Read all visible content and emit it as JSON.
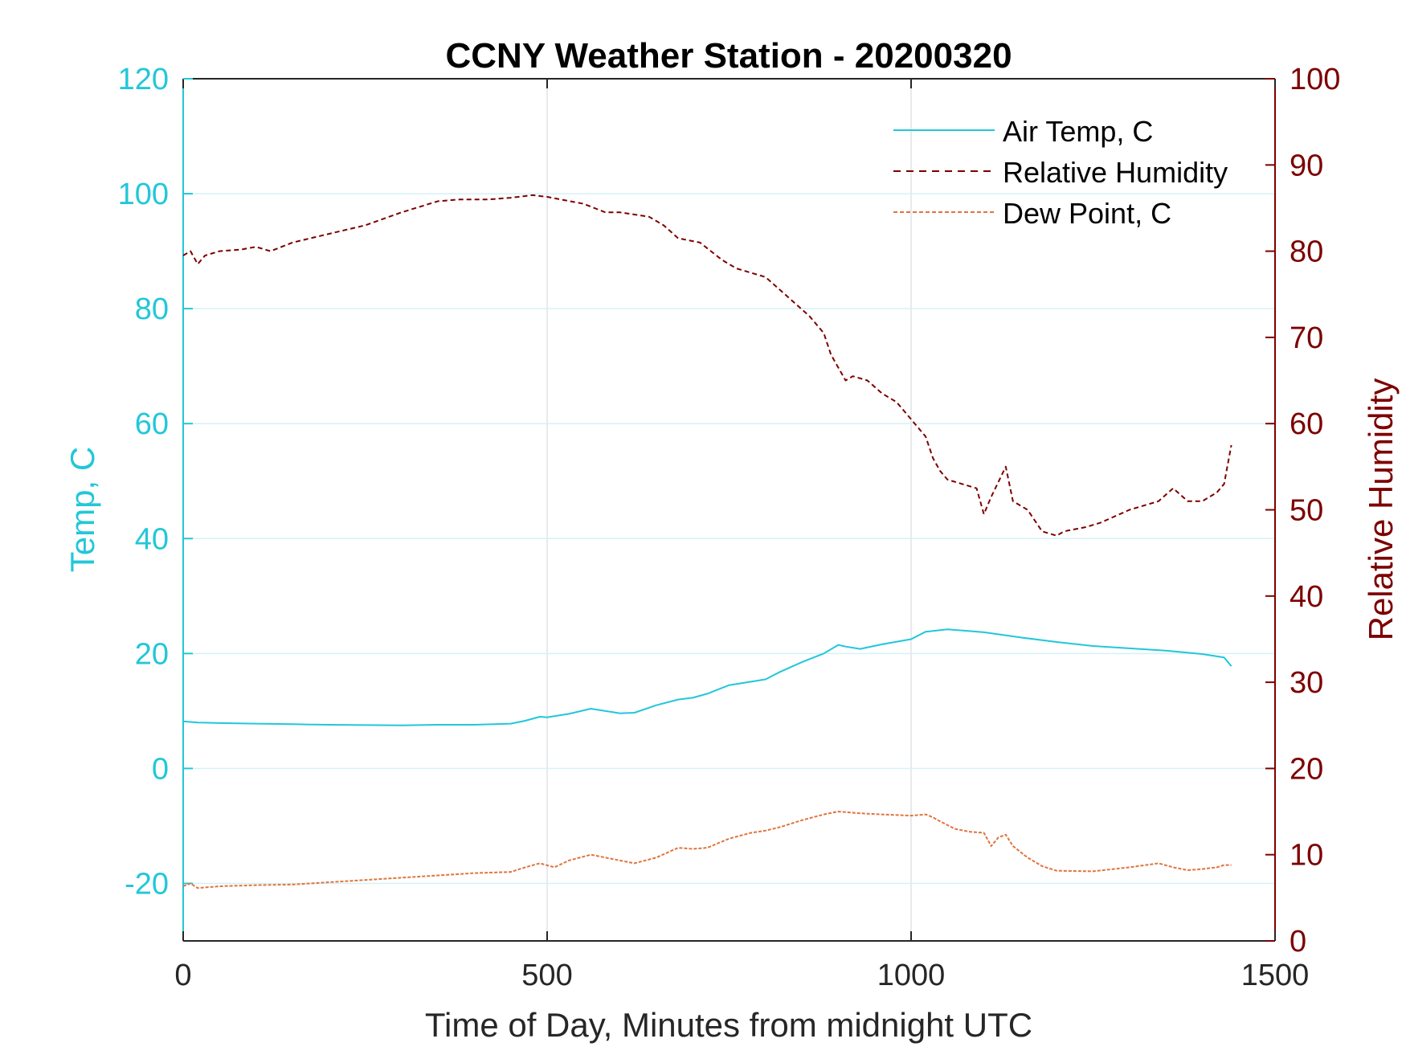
{
  "chart_data": {
    "type": "line",
    "title": "CCNY Weather Station - 20200320",
    "xlabel": "Time of Day, Minutes from midnight UTC",
    "ylabel_left": "Temp, C",
    "ylabel_right": "Relative Humidity",
    "xlim": [
      0,
      1500
    ],
    "ylim_left": [
      -30,
      120
    ],
    "ylim_right": [
      0,
      100
    ],
    "x_ticks": [
      "0",
      "500",
      "1000",
      "1500"
    ],
    "y_ticks_left": [
      "-20",
      "0",
      "20",
      "40",
      "60",
      "80",
      "100",
      "120"
    ],
    "y_ticks_right": [
      "0",
      "10",
      "20",
      "30",
      "40",
      "50",
      "60",
      "70",
      "80",
      "90",
      "100"
    ],
    "grid": true,
    "legend_position": "top-right",
    "colors": {
      "left_axis": "#22c7d9",
      "right_axis": "#7d0000",
      "air_temp": "#22c7d9",
      "humidity": "#7d0000",
      "dew_point": "#e0743c"
    },
    "series": [
      {
        "name": "Air Temp, C",
        "axis": "left",
        "x": [
          0,
          20,
          50,
          100,
          150,
          200,
          300,
          350,
          400,
          450,
          470,
          490,
          500,
          530,
          560,
          600,
          620,
          650,
          680,
          700,
          720,
          750,
          800,
          820,
          850,
          880,
          900,
          910,
          930,
          960,
          1000,
          1020,
          1050,
          1080,
          1100,
          1150,
          1200,
          1250,
          1300,
          1350,
          1400,
          1430,
          1440
        ],
        "values": [
          8.2,
          8.0,
          7.9,
          7.8,
          7.7,
          7.6,
          7.5,
          7.6,
          7.6,
          7.8,
          8.3,
          9.0,
          8.9,
          9.5,
          10.4,
          9.6,
          9.7,
          11.0,
          12.0,
          12.3,
          13.0,
          14.5,
          15.5,
          16.8,
          18.5,
          20.0,
          21.5,
          21.2,
          20.8,
          21.6,
          22.5,
          23.8,
          24.2,
          23.9,
          23.7,
          22.8,
          22.0,
          21.3,
          20.9,
          20.5,
          19.9,
          19.3,
          17.8
        ]
      },
      {
        "name": "Relative Humidity",
        "axis": "right",
        "x": [
          0,
          10,
          20,
          30,
          50,
          80,
          100,
          120,
          150,
          200,
          250,
          300,
          350,
          380,
          420,
          450,
          480,
          500,
          550,
          580,
          600,
          640,
          660,
          680,
          710,
          740,
          760,
          800,
          820,
          840,
          860,
          880,
          890,
          900,
          910,
          920,
          940,
          960,
          980,
          1000,
          1020,
          1030,
          1040,
          1050,
          1070,
          1090,
          1100,
          1110,
          1130,
          1140,
          1160,
          1180,
          1200,
          1210,
          1240,
          1260,
          1300,
          1340,
          1360,
          1380,
          1400,
          1420,
          1430,
          1440
        ],
        "values": [
          79.5,
          80,
          78.5,
          79.5,
          80,
          80.2,
          80.5,
          80,
          81,
          82,
          83,
          84.5,
          85.8,
          86,
          86,
          86.2,
          86.5,
          86.3,
          85.5,
          84.5,
          84.5,
          84,
          83,
          81.5,
          81,
          79,
          78,
          77,
          75.5,
          74,
          72.5,
          70.5,
          68,
          66.5,
          65,
          65.5,
          65,
          63.5,
          62.5,
          60.5,
          58.5,
          56,
          54.5,
          53.5,
          53,
          52.5,
          49.5,
          51.5,
          55,
          51,
          50,
          47.5,
          47,
          47.5,
          48,
          48.5,
          50,
          51,
          52.5,
          51,
          51,
          52,
          53,
          57.5
        ]
      },
      {
        "name": "Dew Point, C",
        "axis": "left",
        "x": [
          0,
          10,
          20,
          50,
          100,
          150,
          200,
          250,
          300,
          350,
          400,
          450,
          470,
          490,
          510,
          530,
          560,
          600,
          620,
          650,
          680,
          700,
          720,
          750,
          780,
          800,
          820,
          850,
          880,
          900,
          930,
          960,
          1000,
          1020,
          1030,
          1040,
          1060,
          1080,
          1100,
          1110,
          1120,
          1130,
          1140,
          1160,
          1180,
          1200,
          1250,
          1300,
          1340,
          1360,
          1380,
          1400,
          1420,
          1430,
          1440
        ],
        "values": [
          -20.5,
          -20,
          -20.8,
          -20.5,
          -20.3,
          -20.2,
          -19.8,
          -19.4,
          -19,
          -18.6,
          -18.2,
          -18,
          -17.2,
          -16.5,
          -17.2,
          -16,
          -15,
          -16,
          -16.5,
          -15.5,
          -13.8,
          -14,
          -13.8,
          -12.2,
          -11.2,
          -10.8,
          -10.2,
          -9.0,
          -8.0,
          -7.5,
          -7.8,
          -8.0,
          -8.2,
          -8.0,
          -8.5,
          -9.2,
          -10.5,
          -11,
          -11.2,
          -13.5,
          -12,
          -11.5,
          -13.5,
          -15.5,
          -17,
          -17.8,
          -17.9,
          -17.2,
          -16.5,
          -17.2,
          -17.7,
          -17.5,
          -17.2,
          -16.8,
          -16.8
        ]
      }
    ]
  }
}
